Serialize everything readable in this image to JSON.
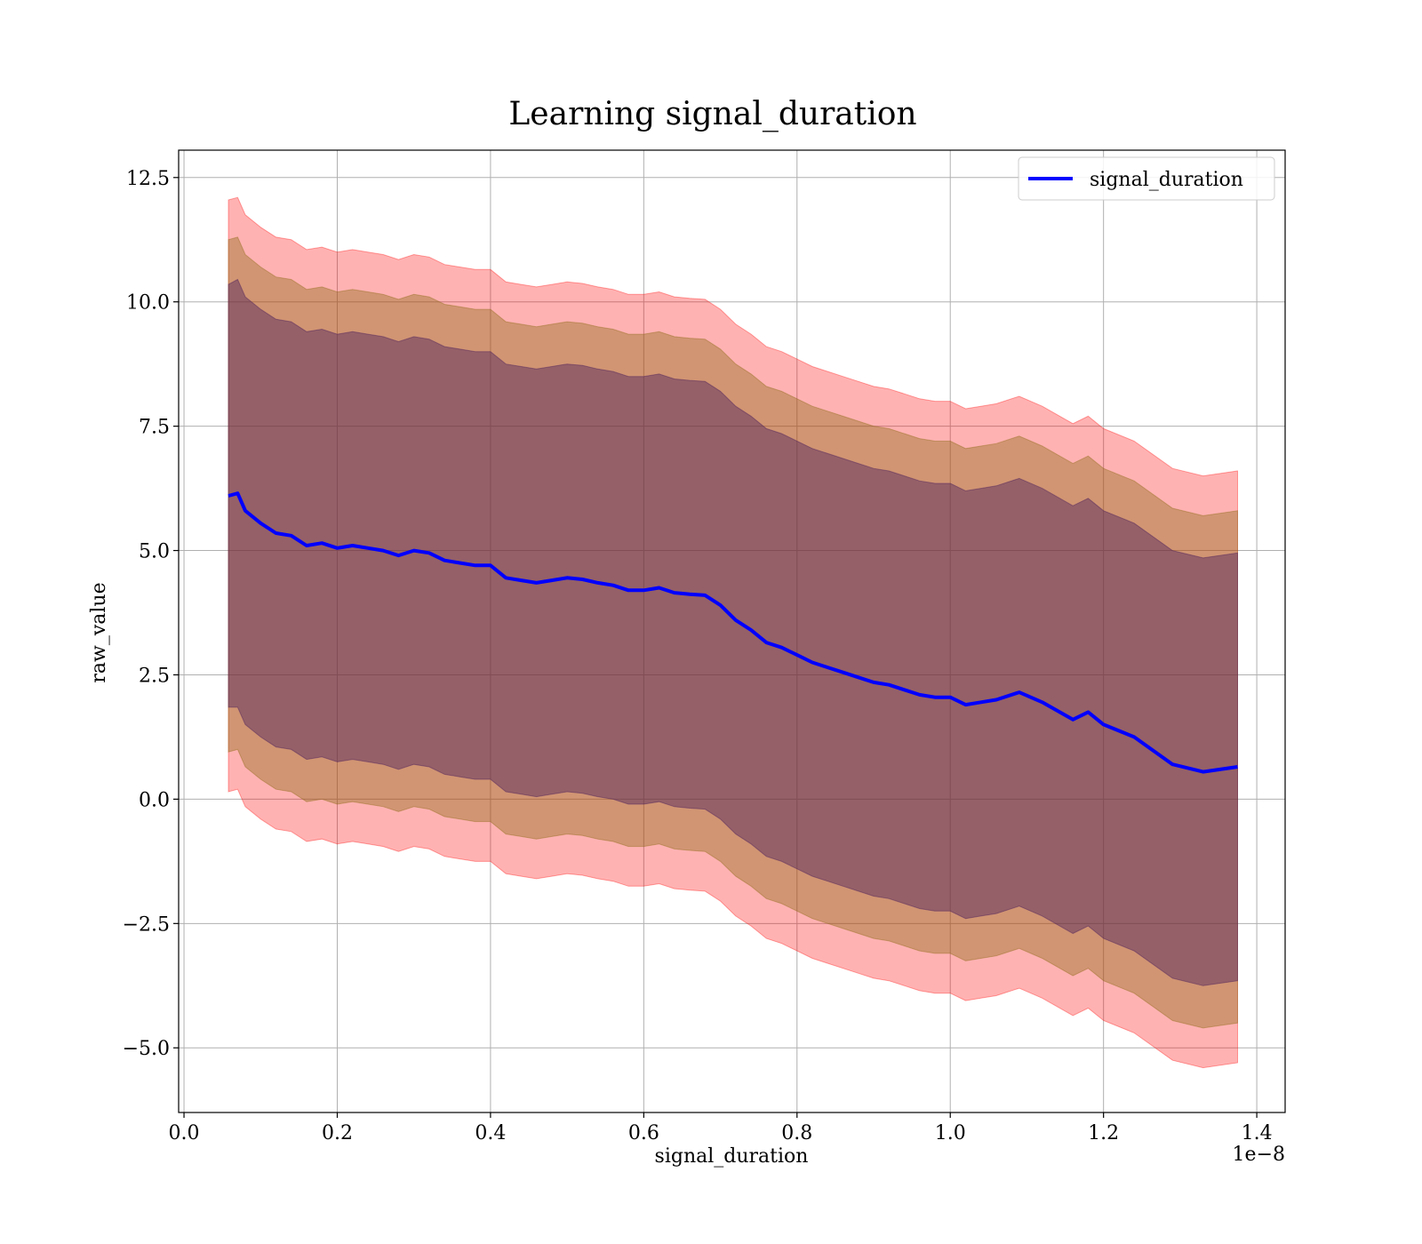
{
  "chart_data": {
    "type": "line",
    "title": "Learning signal_duration",
    "xlabel": "signal_duration",
    "ylabel": "raw_value",
    "x_offset_label": "1e−8",
    "xlim": [
      -0.007,
      1.437
    ],
    "ylim": [
      -6.3,
      13.05
    ],
    "x_ticks": [
      0.0,
      0.2,
      0.4,
      0.6,
      0.8,
      1.0,
      1.2,
      1.4
    ],
    "x_tick_labels": [
      "0.0",
      "0.2",
      "0.4",
      "0.6",
      "0.8",
      "1.0",
      "1.2",
      "1.4"
    ],
    "y_ticks": [
      -5.0,
      -2.5,
      0.0,
      2.5,
      5.0,
      7.5,
      10.0,
      12.5
    ],
    "y_tick_labels": [
      "−5.0",
      "−2.5",
      "0.0",
      "2.5",
      "5.0",
      "7.5",
      "10.0",
      "12.5"
    ],
    "grid": true,
    "legend_position": "top-right",
    "colors": {
      "line": "#0000ff",
      "outer_band": "#ff0000",
      "middle_band": "#8b6914",
      "inner_band": "#4b1f5a"
    },
    "series": [
      {
        "name": "signal_duration",
        "x": [
          0.058,
          0.07,
          0.08,
          0.1,
          0.12,
          0.14,
          0.16,
          0.18,
          0.2,
          0.22,
          0.24,
          0.26,
          0.28,
          0.3,
          0.32,
          0.34,
          0.36,
          0.38,
          0.4,
          0.42,
          0.44,
          0.46,
          0.48,
          0.5,
          0.52,
          0.54,
          0.56,
          0.58,
          0.6,
          0.62,
          0.64,
          0.66,
          0.68,
          0.7,
          0.72,
          0.74,
          0.76,
          0.78,
          0.8,
          0.82,
          0.84,
          0.86,
          0.88,
          0.9,
          0.92,
          0.94,
          0.96,
          0.98,
          1.0,
          1.02,
          1.04,
          1.06,
          1.09,
          1.12,
          1.16,
          1.18,
          1.2,
          1.24,
          1.29,
          1.33,
          1.375
        ],
        "values": [
          6.1,
          6.15,
          5.8,
          5.55,
          5.35,
          5.3,
          5.1,
          5.15,
          5.05,
          5.1,
          5.05,
          5.0,
          4.9,
          5.0,
          4.95,
          4.8,
          4.75,
          4.7,
          4.7,
          4.45,
          4.4,
          4.35,
          4.4,
          4.45,
          4.42,
          4.35,
          4.3,
          4.2,
          4.2,
          4.25,
          4.15,
          4.12,
          4.1,
          3.9,
          3.6,
          3.4,
          3.15,
          3.05,
          2.9,
          2.75,
          2.65,
          2.55,
          2.45,
          2.35,
          2.3,
          2.2,
          2.1,
          2.05,
          2.05,
          1.9,
          1.95,
          2.0,
          2.15,
          1.95,
          1.6,
          1.75,
          1.5,
          1.25,
          0.7,
          0.55,
          0.65
        ],
        "band_inner": [
          4.25,
          4.3,
          4.3,
          4.3,
          4.3,
          4.3,
          4.3,
          4.3,
          4.3,
          4.3,
          4.3,
          4.3,
          4.3,
          4.3,
          4.3,
          4.3,
          4.3,
          4.3,
          4.3,
          4.3,
          4.3,
          4.3,
          4.3,
          4.3,
          4.3,
          4.3,
          4.3,
          4.3,
          4.3,
          4.3,
          4.3,
          4.3,
          4.3,
          4.3,
          4.3,
          4.3,
          4.3,
          4.3,
          4.3,
          4.3,
          4.3,
          4.3,
          4.3,
          4.3,
          4.3,
          4.3,
          4.3,
          4.3,
          4.3,
          4.3,
          4.3,
          4.3,
          4.3,
          4.3,
          4.3,
          4.3,
          4.3,
          4.3,
          4.3,
          4.3,
          4.3
        ],
        "band_middle": [
          5.15,
          5.15,
          5.15,
          5.15,
          5.15,
          5.15,
          5.15,
          5.15,
          5.15,
          5.15,
          5.15,
          5.15,
          5.15,
          5.15,
          5.15,
          5.15,
          5.15,
          5.15,
          5.15,
          5.15,
          5.15,
          5.15,
          5.15,
          5.15,
          5.15,
          5.15,
          5.15,
          5.15,
          5.15,
          5.15,
          5.15,
          5.15,
          5.15,
          5.15,
          5.15,
          5.15,
          5.15,
          5.15,
          5.15,
          5.15,
          5.15,
          5.15,
          5.15,
          5.15,
          5.15,
          5.15,
          5.15,
          5.15,
          5.15,
          5.15,
          5.15,
          5.15,
          5.15,
          5.15,
          5.15,
          5.15,
          5.15,
          5.15,
          5.15,
          5.15,
          5.15
        ],
        "band_outer": [
          5.95,
          5.95,
          5.95,
          5.95,
          5.95,
          5.95,
          5.95,
          5.95,
          5.95,
          5.95,
          5.95,
          5.95,
          5.95,
          5.95,
          5.95,
          5.95,
          5.95,
          5.95,
          5.95,
          5.95,
          5.95,
          5.95,
          5.95,
          5.95,
          5.95,
          5.95,
          5.95,
          5.95,
          5.95,
          5.95,
          5.95,
          5.95,
          5.95,
          5.95,
          5.95,
          5.95,
          5.95,
          5.95,
          5.95,
          5.95,
          5.95,
          5.95,
          5.95,
          5.95,
          5.95,
          5.95,
          5.95,
          5.95,
          5.95,
          5.95,
          5.95,
          5.95,
          5.95,
          5.95,
          5.95,
          5.95,
          5.95,
          5.95,
          5.95,
          5.95,
          5.95
        ]
      }
    ]
  }
}
